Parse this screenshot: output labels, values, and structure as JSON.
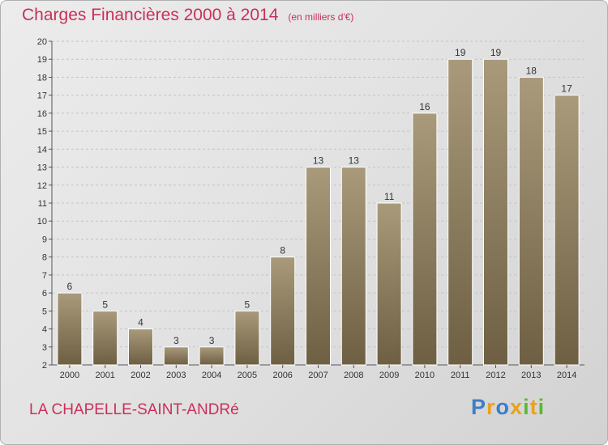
{
  "header": {
    "title": "Charges Financières 2000 à 2014",
    "subtitle": "(en milliers d'€)"
  },
  "footer": {
    "city": "LA CHAPELLE-SAINT-ANDRé",
    "logo": "Proxiti"
  },
  "colors": {
    "title": "#c8305a",
    "bar_top": "#a99a7b",
    "bar_bottom": "#6e5f43",
    "logo_letters": [
      "#3d7ec8",
      "#e8a21c",
      "#3d7ec8",
      "#e8a21c",
      "#5bb832",
      "#e8a21c",
      "#5bb832"
    ]
  },
  "chart_data": {
    "type": "bar",
    "categories": [
      "2000",
      "2001",
      "2002",
      "2003",
      "2004",
      "2005",
      "2006",
      "2007",
      "2008",
      "2009",
      "2010",
      "2011",
      "2012",
      "2013",
      "2014"
    ],
    "values": [
      6,
      5,
      4,
      3,
      3,
      5,
      8,
      13,
      13,
      11,
      16,
      19,
      19,
      18,
      17
    ],
    "ylim": [
      2,
      20
    ],
    "yticks": [
      2,
      3,
      4,
      5,
      6,
      7,
      8,
      9,
      10,
      11,
      12,
      13,
      14,
      15,
      16,
      17,
      18,
      19,
      20
    ],
    "grid": true,
    "data_labels": true
  }
}
